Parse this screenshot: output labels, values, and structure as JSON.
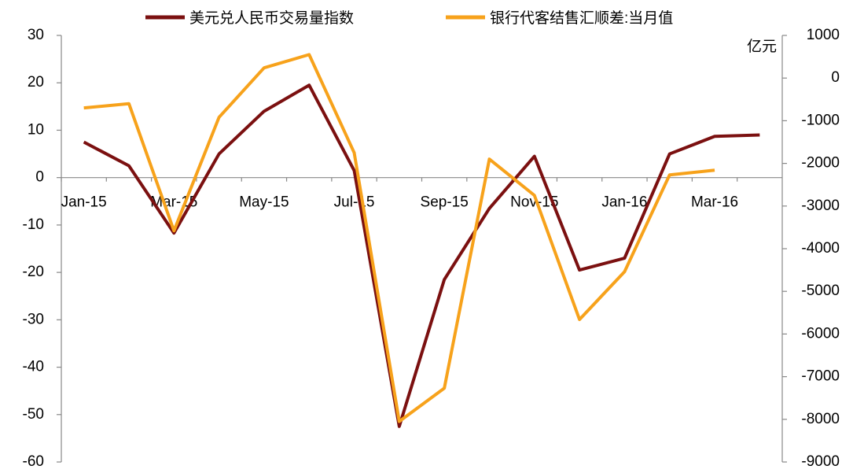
{
  "chart_data": {
    "type": "line",
    "y2_label": "亿元",
    "categories": [
      "Jan-15",
      null,
      "Mar-15",
      null,
      "May-15",
      null,
      "Jul-15",
      null,
      "Sep-15",
      null,
      "Nov-15",
      null,
      "Jan-16",
      null,
      "Mar-16",
      null
    ],
    "series": [
      {
        "name": "美元兑人民币交易量指数",
        "color": "#7b1010",
        "values": [
          7.5,
          2.5,
          -11.7,
          5,
          14,
          19.5,
          1.5,
          -52.5,
          -21.5,
          -6.5,
          4.5,
          -19.5,
          -17,
          5,
          8.7,
          9
        ]
      },
      {
        "name": "银行代客结售汇顺差:当月值",
        "color": "#f7a21b",
        "axis": "y2",
        "values": [
          -700,
          -600,
          -3580,
          -920,
          240,
          550,
          -1750,
          -8050,
          -7270,
          -1900,
          -2750,
          -5660,
          -4540,
          -2270,
          -2160,
          null
        ]
      }
    ],
    "ylim": [
      -60,
      30
    ],
    "yticks": [
      -60,
      -50,
      -40,
      -30,
      -20,
      -10,
      0,
      10,
      20,
      30
    ],
    "y2lim": [
      -9000,
      1000
    ],
    "y2ticks": [
      -9000,
      -8000,
      -7000,
      -6000,
      -5000,
      -4000,
      -3000,
      -2000,
      -1000,
      0,
      1000
    ],
    "legend": "top"
  }
}
